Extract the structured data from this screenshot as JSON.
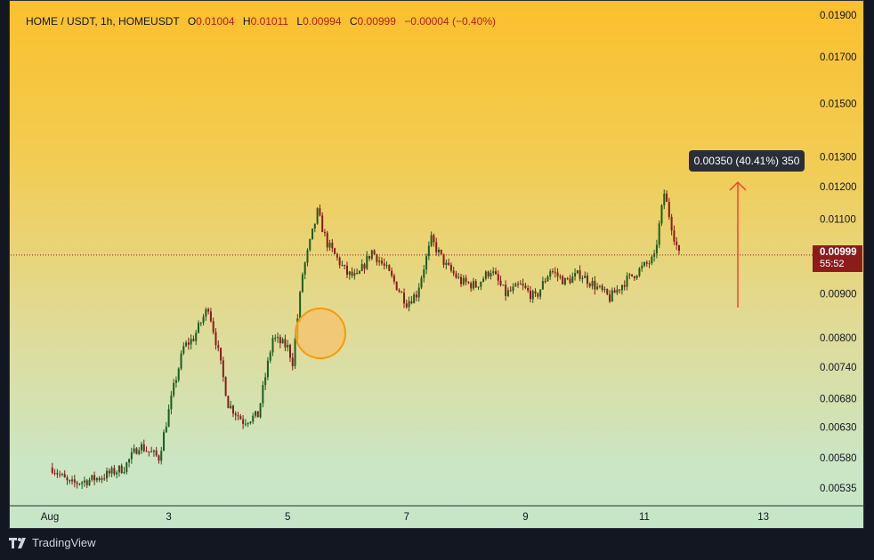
{
  "legend": {
    "symbol": "HOME / USDT, 1h, HOMEUSDT",
    "o_label": "O",
    "o": "0.01004",
    "h_label": "H",
    "h": "0.01011",
    "l_label": "L",
    "l": "0.00994",
    "c_label": "C",
    "c": "0.00999",
    "change": "−0.00004 (−0.40%)"
  },
  "price_tag": {
    "price": "0.00999",
    "countdown": "55:52"
  },
  "measure_label": "0.00350 (40.41%) 350",
  "footer": {
    "brand": "TradingView"
  },
  "colors": {
    "up": "#1b5e20",
    "down": "#8b1a1a",
    "arrow": "#f44336",
    "circle_fill": "#f5c26b",
    "circle_stroke": "#ff9800"
  },
  "chart_data": {
    "type": "candlestick",
    "y_scale": "log",
    "ylim": [
      0.0051,
      0.0191
    ],
    "y_ticks": [
      "0.01900",
      "0.01700",
      "0.01500",
      "0.01300",
      "0.01200",
      "0.01100",
      "0.00900",
      "0.00800",
      "0.00740",
      "0.00680",
      "0.00630",
      "0.00580",
      "0.00535"
    ],
    "x_ticks": [
      "Aug",
      "3",
      "5",
      "7",
      "9",
      "11",
      "13"
    ],
    "current_price": 0.00999,
    "anchors": [
      [
        "Aug 1 01:00",
        0.00565
      ],
      [
        "Aug 1 08:00",
        0.0054
      ],
      [
        "Aug 1 20:00",
        0.0055
      ],
      [
        "Aug 2 06:00",
        0.00565
      ],
      [
        "Aug 2 12:00",
        0.006
      ],
      [
        "Aug 2 20:00",
        0.0058
      ],
      [
        "Aug 3 02:00",
        0.007
      ],
      [
        "Aug 3 06:00",
        0.0078
      ],
      [
        "Aug 3 10:00",
        0.008
      ],
      [
        "Aug 3 16:00",
        0.0087
      ],
      [
        "Aug 3 20:00",
        0.0077
      ],
      [
        "Aug 3 24:00",
        0.0067
      ],
      [
        "Aug 4 06:00",
        0.0064
      ],
      [
        "Aug 4 12:00",
        0.0065
      ],
      [
        "Aug 4 18:00",
        0.008
      ],
      [
        "Aug 4 24:00",
        0.0078
      ],
      [
        "Aug 5 02:00",
        0.0075
      ],
      [
        "Aug 5 06:00",
        0.0095
      ],
      [
        "Aug 5 12:00",
        0.0112
      ],
      [
        "Aug 5 16:00",
        0.0103
      ],
      [
        "Aug 5 24:00",
        0.0095
      ],
      [
        "Aug 6 04:00",
        0.0094
      ],
      [
        "Aug 6 10:00",
        0.0101
      ],
      [
        "Aug 6 16:00",
        0.0096
      ],
      [
        "Aug 6 24:00",
        0.0088
      ],
      [
        "Aug 7 04:00",
        0.009
      ],
      [
        "Aug 7 10:00",
        0.0104
      ],
      [
        "Aug 7 16:00",
        0.0097
      ],
      [
        "Aug 7 22:00",
        0.0093
      ],
      [
        "Aug 8 04:00",
        0.0092
      ],
      [
        "Aug 8 10:00",
        0.0096
      ],
      [
        "Aug 8 16:00",
        0.009
      ],
      [
        "Aug 8 22:00",
        0.0092
      ],
      [
        "Aug 9 04:00",
        0.0089
      ],
      [
        "Aug 9 10:00",
        0.0096
      ],
      [
        "Aug 9 16:00",
        0.0093
      ],
      [
        "Aug 9 22:00",
        0.0095
      ],
      [
        "Aug 10 04:00",
        0.0092
      ],
      [
        "Aug 10 10:00",
        0.0089
      ],
      [
        "Aug 10 16:00",
        0.0093
      ],
      [
        "Aug 10 22:00",
        0.0096
      ],
      [
        "Aug 11 04:00",
        0.0099
      ],
      [
        "Aug 11 08:00",
        0.0118
      ],
      [
        "Aug 11 12:00",
        0.0105
      ],
      [
        "Aug 11 14:00",
        0.00999
      ]
    ]
  }
}
